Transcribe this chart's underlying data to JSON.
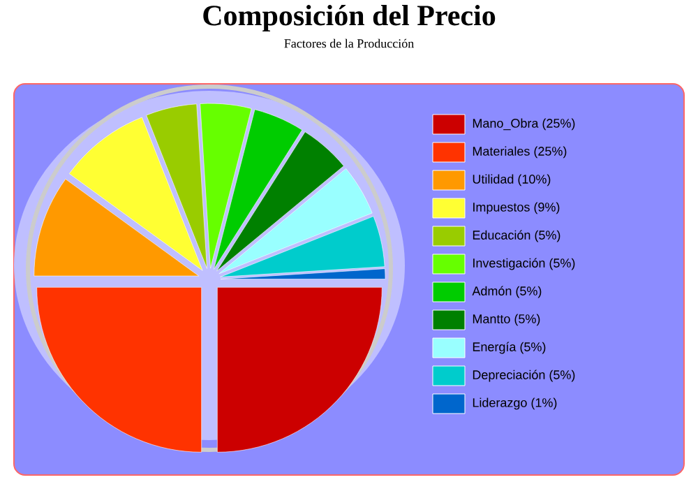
{
  "chart_data": {
    "type": "pie",
    "title": "Composición del Precio",
    "subtitle": "Factores de la Producción",
    "legend": "right",
    "categories": [
      "Mano_Obra (25%)",
      "Materiales (25%)",
      "Utilidad (10%)",
      "Impuestos (9%)",
      "Educación (5%)",
      "Investigación (5%)",
      "Admón (5%)",
      "Mantto (5%)",
      "Energía (5%)",
      "Depreciación (5%)",
      "Liderazgo (1%)"
    ],
    "values": [
      25,
      25,
      10,
      9,
      5,
      5,
      5,
      5,
      5,
      5,
      1
    ],
    "colors": [
      "#cc0000",
      "#ff3300",
      "#ff9900",
      "#ffff33",
      "#99cc00",
      "#66ff00",
      "#00cc00",
      "#008000",
      "#99ffff",
      "#00cccc",
      "#0066cc"
    ]
  }
}
